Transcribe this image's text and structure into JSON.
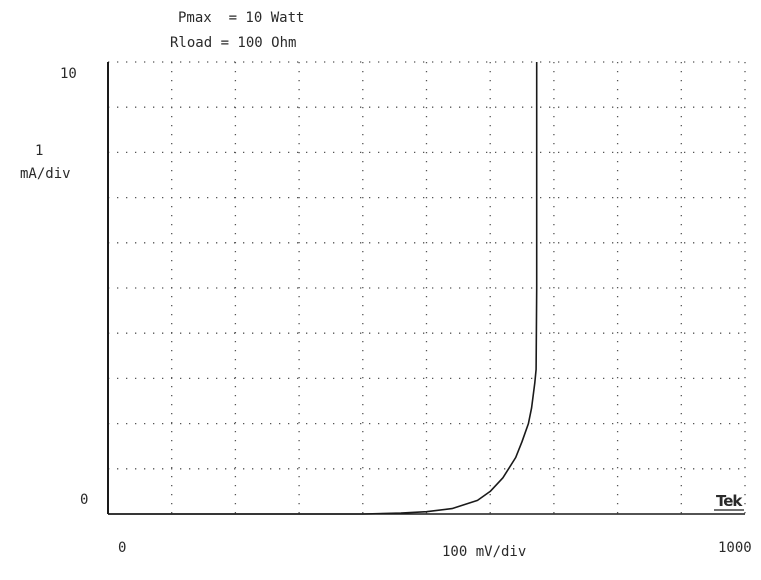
{
  "header": {
    "pmax": "Pmax  = 10 Watt",
    "rload": "Rload = 100 Ohm"
  },
  "brand": "Tek",
  "colors": {
    "trace": "#1a1a1a",
    "grid": "#555555",
    "text": "#2a2a2a"
  },
  "chart_data": {
    "type": "line",
    "title": "",
    "xlabel": "100 mV/div",
    "ylabel_top": "1",
    "ylabel_bottom": "mA/div",
    "x_tick_labels": {
      "left": "0",
      "right": "1000"
    },
    "y_tick_labels": {
      "top": "10",
      "bottom": "0"
    },
    "xlim": [
      0,
      1000
    ],
    "ylim": [
      0,
      10
    ],
    "grid": true,
    "grid_style": "dotted",
    "x_divisions": 10,
    "y_divisions": 10,
    "series": [
      {
        "x": [
          0,
          100,
          200,
          300,
          400,
          460,
          500,
          540,
          580,
          600,
          620,
          640,
          650,
          660,
          665,
          670,
          672,
          673,
          673,
          673
        ],
        "y": [
          0,
          0,
          0,
          0,
          0,
          0.02,
          0.05,
          0.12,
          0.3,
          0.5,
          0.8,
          1.25,
          1.6,
          2.0,
          2.35,
          2.9,
          3.2,
          5.0,
          8.0,
          10.0
        ]
      }
    ]
  }
}
